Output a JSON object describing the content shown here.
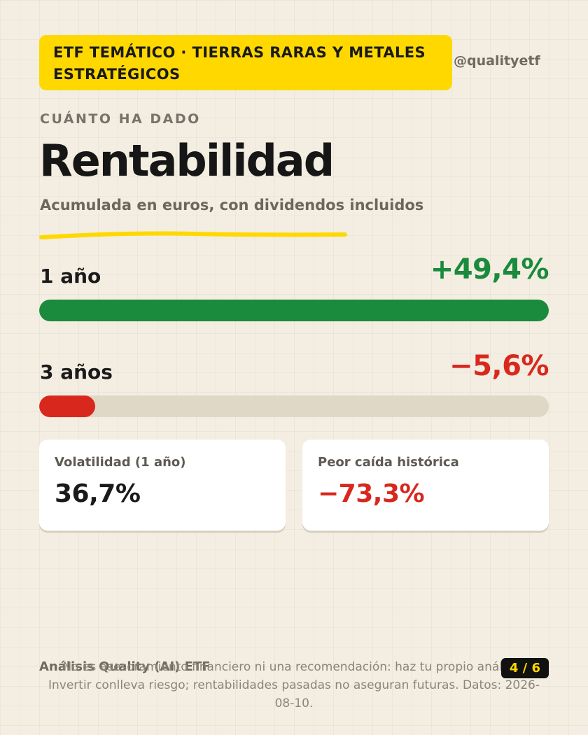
{
  "header": {
    "tag": "ETF TEMÁTICO · TIERRAS RARAS Y METALES ESTRATÉGICOS",
    "handle": "@qualityetf"
  },
  "section": {
    "kicker": "CUÁNTO HA DADO",
    "title": "Rentabilidad",
    "subtitle": "Acumulada en euros, con dividendos incluidos"
  },
  "returns": [
    {
      "label": "1 año",
      "value": "+49,4%",
      "fill_fraction": 1.0,
      "color": "#1a8a3c"
    },
    {
      "label": "3 años",
      "value": "−5,6%",
      "fill_fraction": 0.11,
      "color": "#d8281e"
    }
  ],
  "cards": [
    {
      "label": "Volatilidad (1 año)",
      "value": "36,7%",
      "color": "#1a1a1a"
    },
    {
      "label": "Peor caída histórica",
      "value": "−73,3%",
      "color": "#d8281e"
    }
  ],
  "footer": {
    "brand": "Análisis Quality (AI) ETF",
    "page": "4 / 6",
    "disclaimer": "No es asesoramiento financiero ni una recomendación: haz tu propio análisis. Invertir conlleva riesgo; rentabilidades pasadas no aseguran futuras. Datos: 2026-08-10."
  },
  "colors": {
    "accent": "#ffd800",
    "positive": "#1a8a3c",
    "negative": "#d8281e",
    "background": "#f3eee1"
  }
}
